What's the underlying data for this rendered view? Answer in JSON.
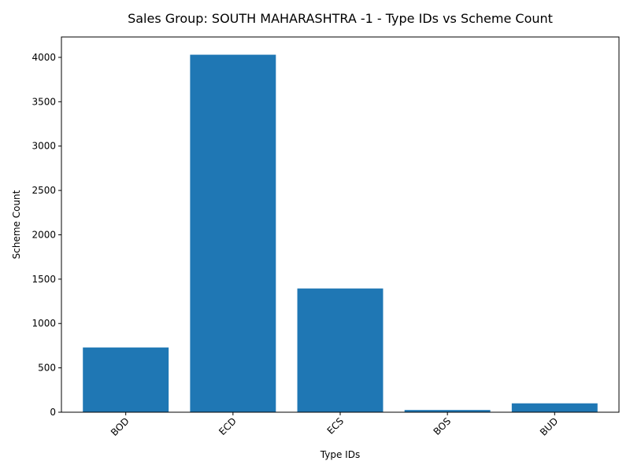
{
  "chart_data": {
    "type": "bar",
    "title": "Sales Group: SOUTH MAHARASHTRA -1 - Type IDs vs Scheme Count",
    "xlabel": "Type IDs",
    "ylabel": "Scheme Count",
    "categories": [
      "BOD",
      "ECD",
      "ECS",
      "BOS",
      "BUD"
    ],
    "values": [
      730,
      4030,
      1395,
      25,
      100
    ],
    "ylim": [
      0,
      4230
    ],
    "yticks": [
      0,
      500,
      1000,
      1500,
      2000,
      2500,
      3000,
      3500,
      4000
    ],
    "bar_color": "#1f77b4",
    "grid": false,
    "legend": "none"
  }
}
